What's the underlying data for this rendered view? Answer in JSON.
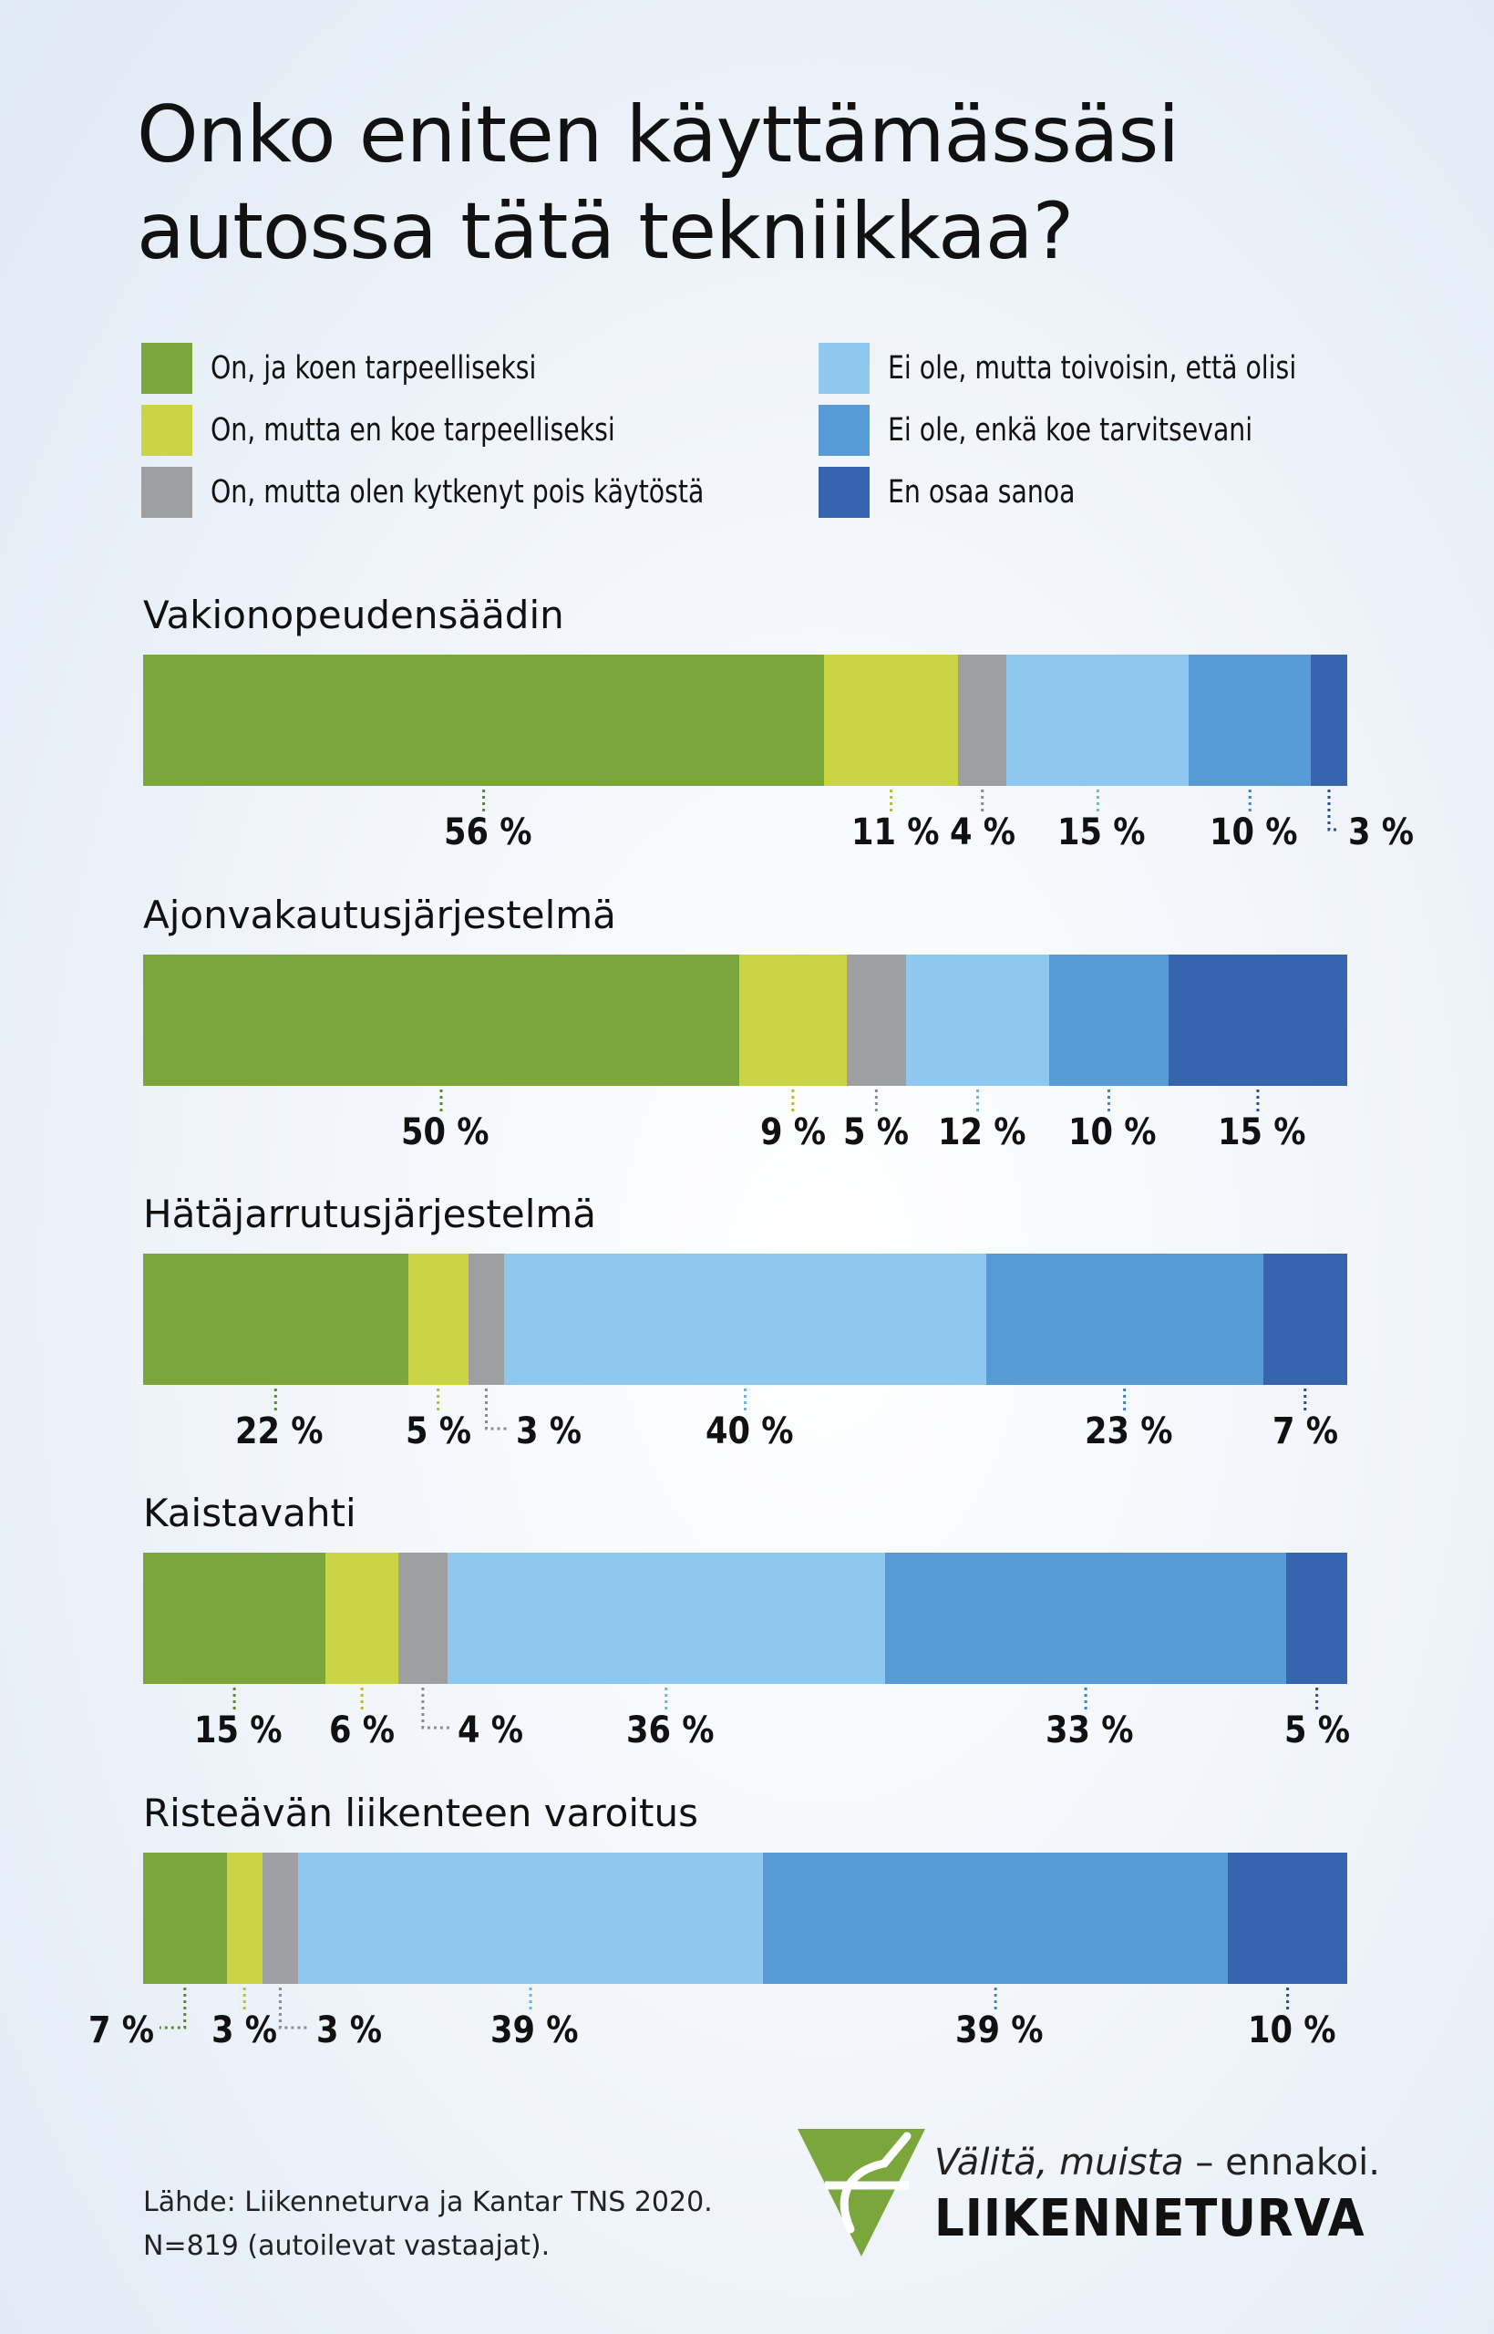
{
  "title_lines": [
    "Onko eniten käyttämässäsi",
    "autossa tätä tekniikkaa?"
  ],
  "colors": {
    "green": "#7aa63c",
    "yellow": "#cbd445",
    "gray": "#9e9fa1",
    "light_blue": "#8ec8f0",
    "mid_blue": "#569bd6",
    "dark_blue": "#3664ae",
    "logo_green": "#7aa63c"
  },
  "legend": [
    {
      "label": "On, ja koen tarpeelliseksi",
      "color_key": "green"
    },
    {
      "label": "On, mutta en koe tarpeelliseksi",
      "color_key": "yellow"
    },
    {
      "label": "On, mutta olen kytkenyt pois käytöstä",
      "color_key": "gray"
    },
    {
      "label": "Ei ole, mutta toivoisin, että olisi",
      "color_key": "light_blue"
    },
    {
      "label": "Ei ole, enkä koe tarvitsevani",
      "color_key": "mid_blue"
    },
    {
      "label": "En osaa sanoa",
      "color_key": "dark_blue"
    }
  ],
  "chart_data": {
    "type": "bar",
    "orientation": "horizontal-stacked-100",
    "value_suffix": " %",
    "series_names": [
      "On, ja koen tarpeelliseksi",
      "On, mutta en koe tarpeelliseksi",
      "On, mutta olen kytkenyt pois käytöstä",
      "Ei ole, mutta toivoisin, että olisi",
      "Ei ole, enkä koe tarvitsevani",
      "En osaa sanoa"
    ],
    "categories": [
      "Vakionopeudensäädin",
      "Ajonvakautusjärjestelmä",
      "Hätäjarrutusjärjestelmä",
      "Kaistavahti",
      "Risteävän liikenteen varoitus"
    ],
    "values": [
      [
        56,
        11,
        4,
        15,
        10,
        3
      ],
      [
        50,
        9,
        5,
        12,
        10,
        15
      ],
      [
        22,
        5,
        3,
        40,
        23,
        7
      ],
      [
        15,
        6,
        4,
        36,
        33,
        5
      ],
      [
        7,
        3,
        3,
        39,
        39,
        10
      ]
    ],
    "labels": [
      [
        "56 %",
        "11 %",
        "4 %",
        "15 %",
        "10 %",
        "3 %"
      ],
      [
        "50 %",
        "9 %",
        "5 %",
        "12 %",
        "10 %",
        "15 %"
      ],
      [
        "22 %",
        "5 %",
        "3 %",
        "40 %",
        "23 %",
        "7 %"
      ],
      [
        "15 %",
        "6 %",
        "4 %",
        "36 %",
        "33 %",
        "5 %"
      ],
      [
        "7 %",
        "3 %",
        "3 %",
        "39 %",
        "39 %",
        "10 %"
      ]
    ],
    "legend_position": "top",
    "grid": false
  },
  "source_lines": [
    "Lähde: Liikenneturva ja Kantar TNS 2020.",
    "N=819 (autoilevat vastaajat)."
  ],
  "logo": {
    "slogan_italic": "Välitä, muista",
    "slogan_rest": " – ennakoi.",
    "brand": "LIIKENNETURVA"
  }
}
